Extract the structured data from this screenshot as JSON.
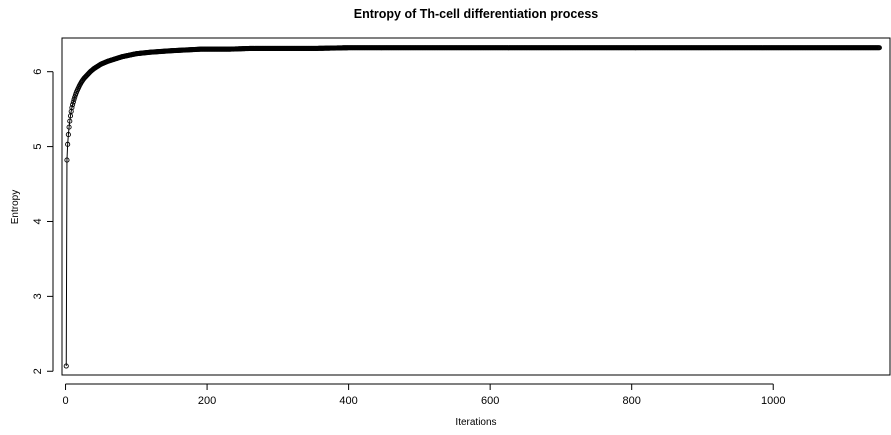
{
  "chart_data": {
    "type": "line",
    "title": "Entropy of Th-cell differentiation process",
    "xlabel": "Iterations",
    "ylabel": "Entropy",
    "xlim": [
      -5,
      1165
    ],
    "ylim": [
      1.95,
      6.45
    ],
    "x_ticks": [
      0,
      200,
      400,
      600,
      800,
      1000
    ],
    "y_ticks": [
      2,
      3,
      4,
      5,
      6
    ],
    "grid": false,
    "legend": "none",
    "marker": "open-circle",
    "series": [
      {
        "x": [
          1,
          2,
          3,
          4,
          5,
          6,
          7,
          8,
          9,
          10,
          12,
          14,
          16,
          18,
          20,
          23,
          26,
          30,
          35,
          40,
          45,
          50,
          60,
          70,
          80,
          90,
          100,
          110,
          120,
          135,
          150,
          170,
          190,
          210,
          230,
          260,
          300,
          350,
          400,
          450,
          500,
          550,
          600,
          650,
          700,
          750,
          800,
          850,
          900,
          950,
          1000,
          1050,
          1100,
          1150
        ],
        "values": [
          2.07,
          4.82,
          5.03,
          5.16,
          5.26,
          5.34,
          5.41,
          5.47,
          5.52,
          5.56,
          5.63,
          5.69,
          5.74,
          5.78,
          5.82,
          5.87,
          5.91,
          5.95,
          6.0,
          6.04,
          6.07,
          6.1,
          6.14,
          6.17,
          6.2,
          6.22,
          6.24,
          6.25,
          6.26,
          6.27,
          6.28,
          6.29,
          6.3,
          6.3,
          6.3,
          6.31,
          6.31,
          6.31,
          6.32,
          6.32,
          6.32,
          6.32,
          6.32,
          6.32,
          6.32,
          6.32,
          6.32,
          6.32,
          6.32,
          6.32,
          6.32,
          6.32,
          6.32,
          6.32
        ]
      }
    ]
  }
}
